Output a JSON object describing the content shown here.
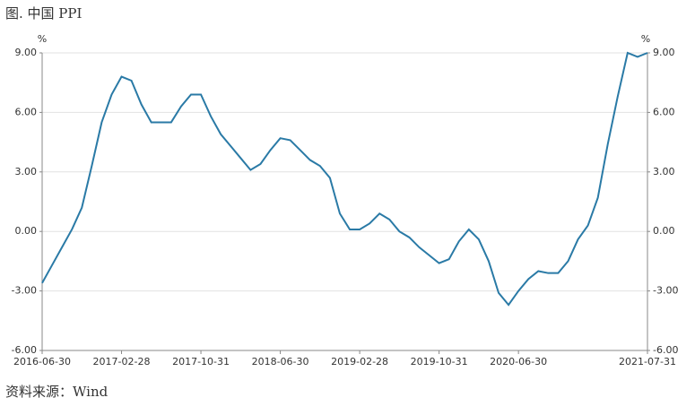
{
  "chart_data": {
    "type": "line",
    "title": "图. 中国 PPI",
    "source": "资料来源：Wind",
    "y_unit": "%",
    "y2_unit": "%",
    "categories": [
      "2016-06-30",
      null,
      null,
      null,
      null,
      null,
      null,
      null,
      "2017-02-28",
      null,
      null,
      null,
      null,
      null,
      null,
      null,
      "2017-10-31",
      null,
      null,
      null,
      null,
      null,
      null,
      null,
      "2018-06-30",
      null,
      null,
      null,
      null,
      null,
      null,
      null,
      "2019-02-28",
      null,
      null,
      null,
      null,
      null,
      null,
      null,
      "2019-10-31",
      null,
      null,
      null,
      null,
      null,
      null,
      null,
      "2020-06-30",
      null,
      null,
      null,
      null,
      null,
      null,
      null,
      null,
      null,
      null,
      null,
      null,
      "2021-07-31"
    ],
    "series": [
      {
        "name": "PPI",
        "color": "#2a7aa6",
        "values": [
          -2.6,
          -1.7,
          -0.8,
          0.1,
          1.2,
          3.3,
          5.5,
          6.9,
          7.8,
          7.6,
          6.4,
          5.5,
          5.5,
          5.5,
          6.3,
          6.9,
          6.9,
          5.8,
          4.9,
          4.3,
          3.7,
          3.1,
          3.4,
          4.1,
          4.7,
          4.6,
          4.1,
          3.6,
          3.3,
          2.7,
          0.9,
          0.1,
          0.1,
          0.4,
          0.9,
          0.6,
          0.0,
          -0.3,
          -0.8,
          -1.2,
          -1.6,
          -1.4,
          -0.5,
          0.1,
          -0.4,
          -1.5,
          -3.1,
          -3.7,
          -3.0,
          -2.4,
          -2.0,
          -2.1,
          -2.1,
          -1.5,
          -0.4,
          0.3,
          1.7,
          4.4,
          6.8,
          9.0,
          8.8,
          9.0
        ]
      }
    ],
    "ylim": [
      -6,
      9
    ],
    "yticks": [
      {
        "value": -6,
        "label": "-6.00"
      },
      {
        "value": -3,
        "label": "-3.00"
      },
      {
        "value": 0,
        "label": "0.00"
      },
      {
        "value": 3,
        "label": "3.00"
      },
      {
        "value": 6,
        "label": "6.00"
      },
      {
        "value": 9,
        "label": "9.00"
      }
    ],
    "y2lim": [
      -6,
      9
    ],
    "y2ticks": [
      {
        "value": -6,
        "label": "-6.00"
      },
      {
        "value": -3,
        "label": "-3.00"
      },
      {
        "value": 0,
        "label": "0.00"
      },
      {
        "value": 3,
        "label": "3.00"
      },
      {
        "value": 6,
        "label": "6.00"
      },
      {
        "value": 9,
        "label": "9.00"
      }
    ],
    "grid": true
  }
}
